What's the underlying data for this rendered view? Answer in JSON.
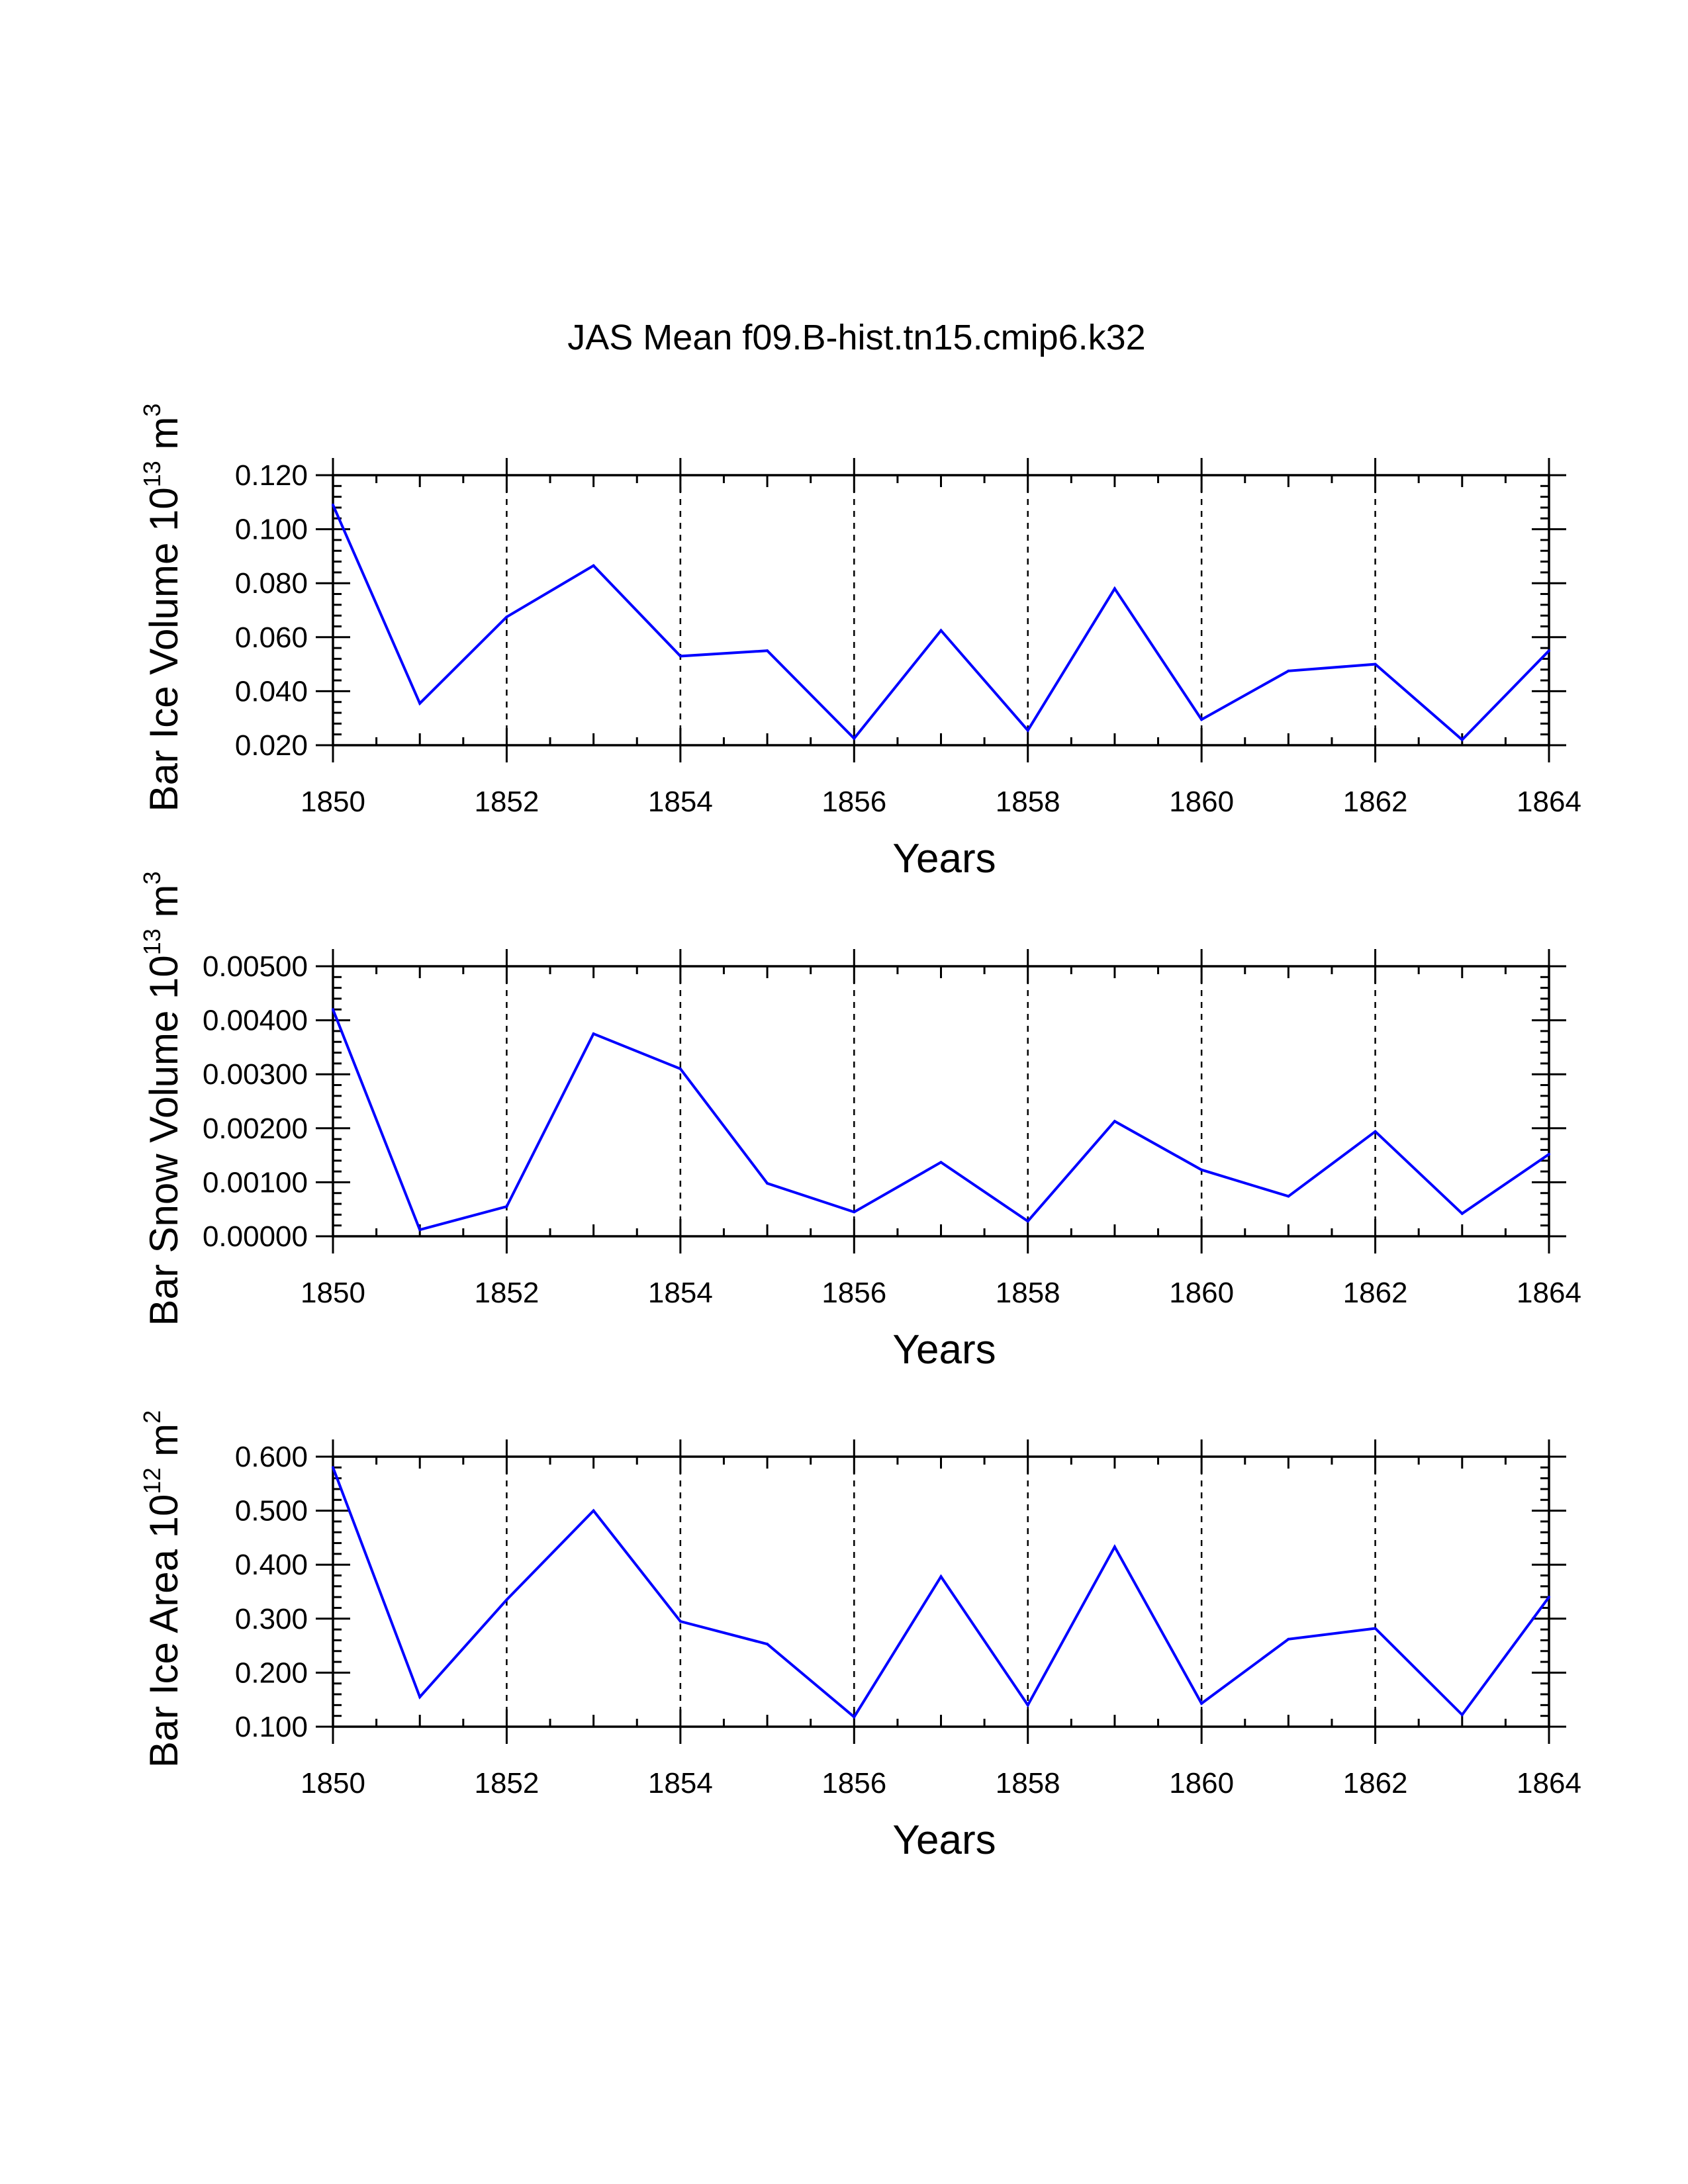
{
  "title": "JAS Mean f09.B-hist.tn15.cmip6.k32",
  "chart_data": [
    {
      "type": "line",
      "title": "",
      "ylabel": "Bar Ice Volume 10",
      "ylabel_exp": "13",
      "ylabel_unit": " m",
      "ylabel_unit_exp": "3",
      "xlabel": "Years",
      "xlim": [
        1850,
        1864
      ],
      "ylim": [
        0.02,
        0.12
      ],
      "yticks": [
        0.02,
        0.04,
        0.06,
        0.08,
        0.1,
        0.12
      ],
      "ytick_labels": [
        "0.020",
        "0.040",
        "0.060",
        "0.080",
        "0.100",
        "0.120"
      ],
      "xticks": [
        1850,
        1852,
        1854,
        1856,
        1858,
        1860,
        1862,
        1864
      ],
      "xtick_labels": [
        "1850",
        "1852",
        "1854",
        "1856",
        "1858",
        "1860",
        "1862",
        "1864"
      ],
      "grid": "vertical dashed",
      "line_color": "#0000ff",
      "x": [
        1850,
        1851,
        1852,
        1853,
        1854,
        1855,
        1856,
        1857,
        1858,
        1859,
        1860,
        1861,
        1862,
        1863,
        1864
      ],
      "values": [
        0.109,
        0.0355,
        0.0675,
        0.0865,
        0.053,
        0.055,
        0.0225,
        0.0625,
        0.0255,
        0.078,
        0.0295,
        0.0475,
        0.05,
        0.022,
        0.055
      ]
    },
    {
      "type": "line",
      "title": "",
      "ylabel": "Bar Snow Volume 10",
      "ylabel_exp": "13",
      "ylabel_unit": " m",
      "ylabel_unit_exp": "3",
      "xlabel": "Years",
      "xlim": [
        1850,
        1864
      ],
      "ylim": [
        0.0,
        0.005
      ],
      "yticks": [
        0.0,
        0.001,
        0.002,
        0.003,
        0.004,
        0.005
      ],
      "ytick_labels": [
        "0.00000",
        "0.00100",
        "0.00200",
        "0.00300",
        "0.00400",
        "0.00500"
      ],
      "xticks": [
        1850,
        1852,
        1854,
        1856,
        1858,
        1860,
        1862,
        1864
      ],
      "xtick_labels": [
        "1850",
        "1852",
        "1854",
        "1856",
        "1858",
        "1860",
        "1862",
        "1864"
      ],
      "grid": "vertical dashed",
      "line_color": "#0000ff",
      "x": [
        1850,
        1851,
        1852,
        1853,
        1854,
        1855,
        1856,
        1857,
        1858,
        1859,
        1860,
        1861,
        1862,
        1863,
        1864
      ],
      "values": [
        0.0042,
        0.00012,
        0.00055,
        0.00375,
        0.0031,
        0.00098,
        0.00045,
        0.00137,
        0.00028,
        0.00213,
        0.00123,
        0.00074,
        0.00194,
        0.00042,
        0.00152
      ]
    },
    {
      "type": "line",
      "title": "",
      "ylabel": "Bar Ice Area 10",
      "ylabel_exp": "12",
      "ylabel_unit": " m",
      "ylabel_unit_exp": "2",
      "xlabel": "Years",
      "xlim": [
        1850,
        1864
      ],
      "ylim": [
        0.1,
        0.6
      ],
      "yticks": [
        0.1,
        0.2,
        0.3,
        0.4,
        0.5,
        0.6
      ],
      "ytick_labels": [
        "0.100",
        "0.200",
        "0.300",
        "0.400",
        "0.500",
        "0.600"
      ],
      "xticks": [
        1850,
        1852,
        1854,
        1856,
        1858,
        1860,
        1862,
        1864
      ],
      "xtick_labels": [
        "1850",
        "1852",
        "1854",
        "1856",
        "1858",
        "1860",
        "1862",
        "1864"
      ],
      "grid": "vertical dashed",
      "line_color": "#0000ff",
      "x": [
        1850,
        1851,
        1852,
        1853,
        1854,
        1855,
        1856,
        1857,
        1858,
        1859,
        1860,
        1861,
        1862,
        1863,
        1864
      ],
      "values": [
        0.58,
        0.155,
        0.335,
        0.5,
        0.295,
        0.253,
        0.118,
        0.378,
        0.14,
        0.433,
        0.143,
        0.262,
        0.282,
        0.122,
        0.34
      ]
    }
  ]
}
